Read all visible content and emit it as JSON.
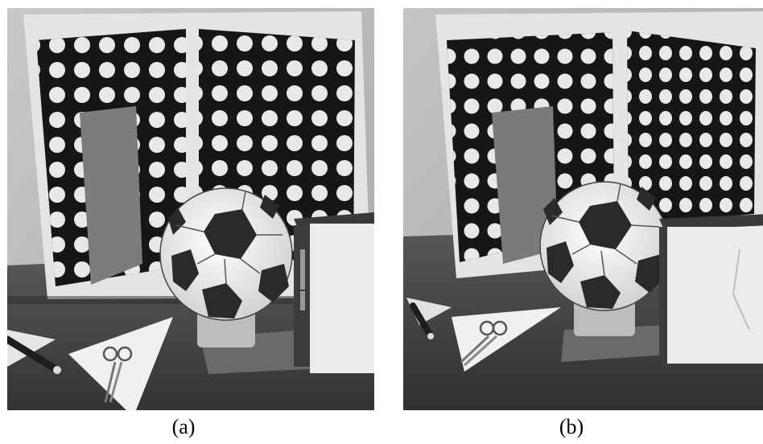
{
  "panels": [
    {
      "caption": "(a)"
    },
    {
      "caption": "(b)"
    }
  ],
  "colors": {
    "wall": "#b8b8b8",
    "board_frame": "#e6e6e6",
    "board_black": "#161616",
    "dots": "#e8e8e8",
    "table": "#4a4a4a",
    "ball_white": "#f2f2f2",
    "ball_black": "#2a2a2a",
    "box": "#ececec"
  }
}
